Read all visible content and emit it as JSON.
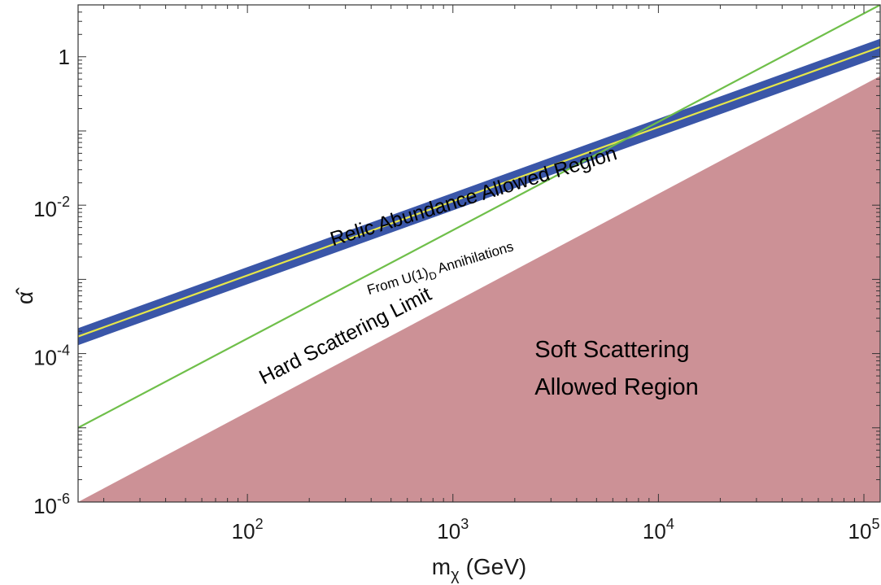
{
  "chart_data": {
    "type": "line",
    "xlabel": "(GeV)",
    "xlabel_symbol": "m",
    "xlabel_subscript": "χ",
    "ylabel": "α̂",
    "x_scale": "log",
    "y_scale": "log",
    "xlim": [
      15,
      120000
    ],
    "ylim": [
      1e-06,
      5
    ],
    "x_ticks": [
      {
        "value": 100,
        "base": "10",
        "exp": "2"
      },
      {
        "value": 1000,
        "base": "10",
        "exp": "3"
      },
      {
        "value": 10000,
        "base": "10",
        "exp": "4"
      },
      {
        "value": 100000,
        "base": "10",
        "exp": "5"
      }
    ],
    "y_ticks": [
      {
        "value": 1,
        "base": "1",
        "exp": ""
      },
      {
        "value": 0.01,
        "base": "10",
        "exp": "-2"
      },
      {
        "value": 0.0001,
        "base": "10",
        "exp": "-4"
      },
      {
        "value": 1e-06,
        "base": "10",
        "exp": "-6"
      }
    ],
    "series": [
      {
        "kind": "band",
        "color": "#3a56a8",
        "x": [
          15,
          120000
        ],
        "y_low": [
          0.00013,
          1.0
        ],
        "y_high": [
          0.00022,
          1.75
        ]
      },
      {
        "kind": "line",
        "color": "#e6e64a",
        "x": [
          15,
          120000
        ],
        "y": [
          0.00017,
          1.35
        ]
      },
      {
        "kind": "line",
        "color": "#6fbf4a",
        "x": [
          15,
          120000
        ],
        "y": [
          1e-05,
          5.0
        ]
      },
      {
        "kind": "region",
        "color": "#cc9196",
        "x": [
          15,
          120000
        ],
        "y": [
          1e-06,
          0.55
        ]
      }
    ],
    "annotations": [
      {
        "id": "relic",
        "text": "Relic Abundance Allowed Region",
        "x": 260,
        "y": 0.0028,
        "angle": -17,
        "size": 25
      },
      {
        "id": "u1d",
        "text_before": "From U(1)",
        "text_sub": "D",
        "text_after": " Annihilations",
        "x": 390,
        "y": 0.00062,
        "angle": -17,
        "size": 17
      },
      {
        "id": "hard",
        "text": "Hard Scattering Limit",
        "x": 120,
        "y": 3.8e-05,
        "angle": -27,
        "size": 25
      },
      {
        "id": "soft1",
        "text": "Soft Scattering",
        "x": 2500,
        "y": 9e-05,
        "angle": 0,
        "size": 29
      },
      {
        "id": "soft2",
        "text": "Allowed Region",
        "x": 2500,
        "y": 2.8e-05,
        "angle": 0,
        "size": 29
      }
    ]
  },
  "colors": {
    "band": "#3a56a8",
    "central_line": "#e6e64a",
    "hard_line": "#6fbf4a",
    "soft_region": "#cc9196",
    "axis": "#333333"
  }
}
